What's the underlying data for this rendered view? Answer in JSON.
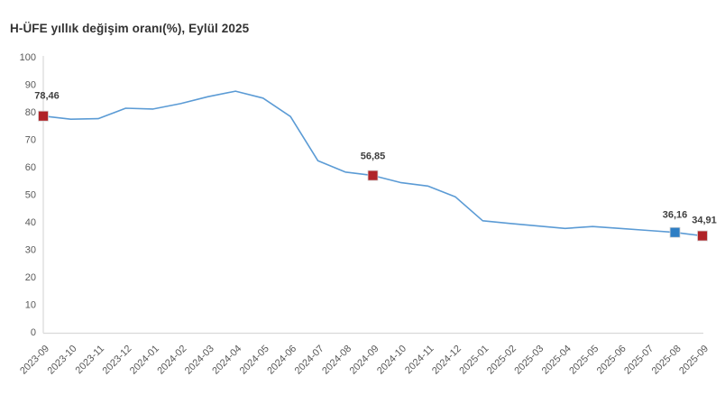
{
  "title": "H-ÜFE yıllık değişim oranı(%), Eylül 2025",
  "colors": {
    "line": "#5B9BD5",
    "marker_red": "#B02328",
    "marker_blue": "#2E7EC4",
    "marker_stroke": "#d6d6d6",
    "axis_line": "#D9D9D9",
    "axis_text": "#595959",
    "data_label": "#3F3F3F",
    "title_text": "#333333",
    "background": "#FFFFFF"
  },
  "chart_data": {
    "type": "line",
    "title": "H-ÜFE yıllık değişim oranı(%), Eylül 2025",
    "xlabel": "",
    "ylabel": "",
    "ylim": [
      0,
      100
    ],
    "ytick_step": 10,
    "grid": false,
    "legend": "none",
    "x": [
      "2023-09",
      "2023-10",
      "2023-11",
      "2023-12",
      "2024-01",
      "2024-02",
      "2024-03",
      "2024-04",
      "2024-05",
      "2024-06",
      "2024-07",
      "2024-08",
      "2024-09",
      "2024-10",
      "2024-11",
      "2024-12",
      "2025-01",
      "2025-02",
      "2025-03",
      "2025-04",
      "2025-05",
      "2025-06",
      "2025-07",
      "2025-08",
      "2025-09"
    ],
    "values": [
      78.46,
      77.3,
      77.5,
      81.3,
      81.0,
      83.0,
      85.5,
      87.5,
      85.0,
      78.3,
      62.2,
      58.1,
      56.85,
      54.3,
      53.0,
      49.1,
      40.4,
      39.4,
      38.5,
      37.6,
      38.3,
      37.6,
      36.9,
      36.16,
      34.91
    ],
    "annotations": [
      {
        "x": "2023-09",
        "value": 78.46,
        "label": "78,46",
        "marker": "red"
      },
      {
        "x": "2024-09",
        "value": 56.85,
        "label": "56,85",
        "marker": "red"
      },
      {
        "x": "2025-08",
        "value": 36.16,
        "label": "36,16",
        "marker": "blue"
      },
      {
        "x": "2025-09",
        "value": 34.91,
        "label": "34,91",
        "marker": "red"
      }
    ]
  }
}
